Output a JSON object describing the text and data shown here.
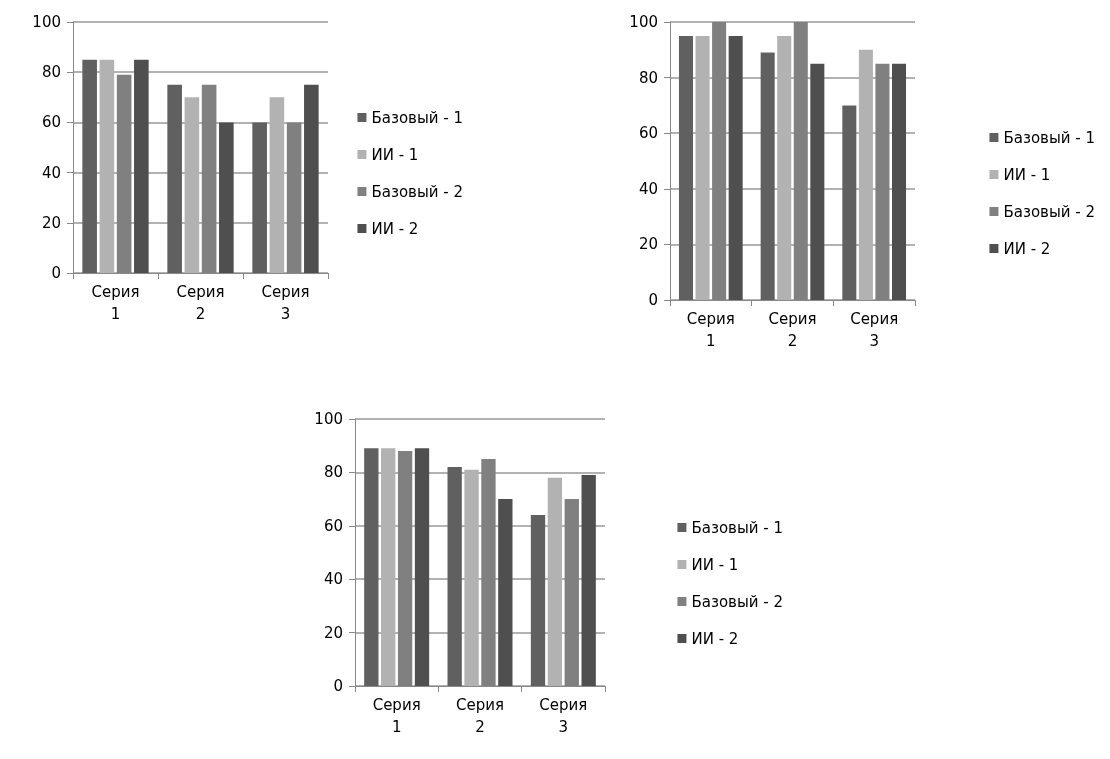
{
  "chart_data": [
    {
      "type": "bar",
      "categories": [
        "Серия 1",
        "Серия 2",
        "Серия 3"
      ],
      "series": [
        {
          "name": "Базовый - 1",
          "color": "#606060",
          "values": [
            85,
            75,
            60
          ]
        },
        {
          "name": "ИИ - 1",
          "color": "#b2b2b2",
          "values": [
            85,
            70,
            70
          ]
        },
        {
          "name": "Базовый - 2",
          "color": "#808080",
          "values": [
            79,
            75,
            60
          ]
        },
        {
          "name": "ИИ - 2",
          "color": "#4f4f4f",
          "values": [
            85,
            60,
            75
          ]
        }
      ],
      "ylim": [
        0,
        100
      ],
      "yticks": [
        0,
        20,
        40,
        60,
        80,
        100
      ],
      "grid": "y",
      "legend": "right"
    },
    {
      "type": "bar",
      "categories": [
        "Серия 1",
        "Серия 2",
        "Серия 3"
      ],
      "series": [
        {
          "name": "Базовый - 1",
          "color": "#606060",
          "values": [
            95,
            89,
            70
          ]
        },
        {
          "name": "ИИ - 1",
          "color": "#b2b2b2",
          "values": [
            95,
            95,
            90
          ]
        },
        {
          "name": "Базовый - 2",
          "color": "#808080",
          "values": [
            100,
            100,
            85
          ]
        },
        {
          "name": "ИИ - 2",
          "color": "#4f4f4f",
          "values": [
            95,
            85,
            85
          ]
        }
      ],
      "ylim": [
        0,
        100
      ],
      "yticks": [
        0,
        20,
        40,
        60,
        80,
        100
      ],
      "grid": "y",
      "legend": "right"
    },
    {
      "type": "bar",
      "categories": [
        "Серия 1",
        "Серия 2",
        "Серия 3"
      ],
      "series": [
        {
          "name": "Базовый - 1",
          "color": "#606060",
          "values": [
            89,
            82,
            64
          ]
        },
        {
          "name": "ИИ - 1",
          "color": "#b2b2b2",
          "values": [
            89,
            81,
            78
          ]
        },
        {
          "name": "Базовый - 2",
          "color": "#808080",
          "values": [
            88,
            85,
            70
          ]
        },
        {
          "name": "ИИ - 2",
          "color": "#4f4f4f",
          "values": [
            89,
            70,
            79
          ]
        }
      ],
      "ylim": [
        0,
        100
      ],
      "yticks": [
        0,
        20,
        40,
        60,
        80,
        100
      ],
      "grid": "y",
      "legend": "right"
    }
  ]
}
